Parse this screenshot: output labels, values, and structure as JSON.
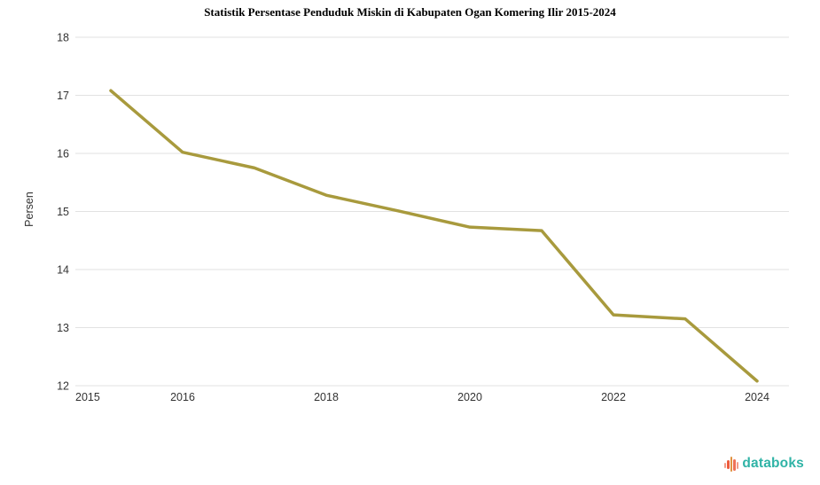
{
  "chart_data": {
    "type": "line",
    "title": "Statistik Persentase Penduduk Miskin di Kabupaten Ogan Komering Ilir 2015-2024",
    "xlabel": "",
    "ylabel": "Persen",
    "categories": [
      2015,
      2016,
      2017,
      2018,
      2019,
      2020,
      2021,
      2022,
      2023,
      2024
    ],
    "values": [
      17.08,
      16.02,
      15.75,
      15.28,
      15.01,
      14.73,
      14.67,
      13.22,
      13.15,
      12.08
    ],
    "ylim": [
      12,
      18
    ],
    "yticks": [
      18,
      17,
      16,
      15,
      14,
      13,
      12
    ],
    "xticks_labeled": [
      2015,
      2016,
      2018,
      2020,
      2022,
      2024
    ],
    "grid": true,
    "legend": "none",
    "line_color": "#a89a3d",
    "grid_color": "#e2e2e2",
    "tick_color": "#333333",
    "background": "#ffffff"
  },
  "branding": {
    "logo_text": "databoks",
    "logo_text_color": "#2fb3a6",
    "logo_icon": "bars-pulse-icon",
    "logo_icon_colors": [
      "#f19c8a",
      "#ed5b3b",
      "#e0923f",
      "#ef7257",
      "#f19c8a"
    ]
  }
}
